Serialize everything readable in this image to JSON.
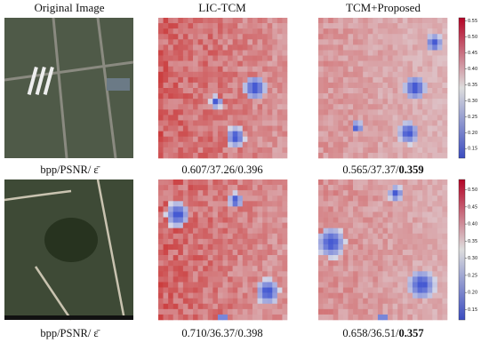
{
  "columns": [
    "Original Image",
    "LIC-TCM",
    "TCM+Proposed"
  ],
  "rows": [
    {
      "label": "bpp/PSNR/ ε̄",
      "lic_caption": "0.607/37.26/0.396",
      "proposed_caption": "0.565/37.37/",
      "proposed_bold": "0.359",
      "colorbar": {
        "range": [
          0.12,
          0.56
        ],
        "ticks": [
          0.15,
          {
            "value": 0.2,
            "label": "0.20"
          },
          0.25,
          {
            "value": 0.3,
            "label": "0.30"
          },
          0.35,
          {
            "value": 0.4,
            "label": "0.40"
          },
          0.45,
          {
            "value": 0.5,
            "label": "0.50"
          },
          0.55
        ]
      }
    },
    {
      "label": "bpp/PSNR/ ε̄",
      "lic_caption": "0.710/36.37/0.398",
      "proposed_caption": "0.658/36.51/",
      "proposed_bold": "0.357",
      "colorbar": {
        "range": [
          0.12,
          0.53
        ],
        "ticks": [
          0.15,
          {
            "value": 0.2,
            "label": "0.20"
          },
          0.25,
          {
            "value": 0.3,
            "label": "0.30"
          },
          0.35,
          {
            "value": 0.4,
            "label": "0.40"
          },
          0.45,
          {
            "value": 0.5,
            "label": "0.50"
          }
        ]
      }
    }
  ]
}
